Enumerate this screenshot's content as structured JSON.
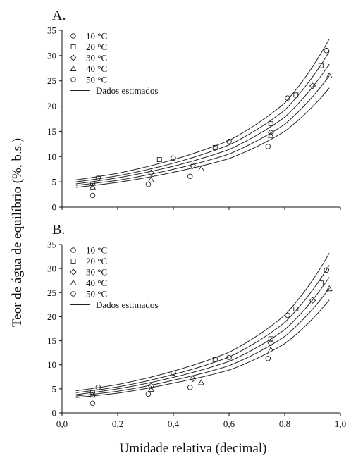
{
  "figure": {
    "ylabel": "Teor de água de equilíbrio (%, b.s.)",
    "xlabel": "Umidade relativa (decimal)"
  },
  "chart_data": [
    {
      "type": "scatter",
      "panel_label": "A.",
      "xlim": [
        0.0,
        1.0
      ],
      "ylim": [
        0,
        35
      ],
      "xticks": [
        "0,0",
        "0,2",
        "0,4",
        "0,6",
        "0,8",
        "1,0"
      ],
      "yticks": [
        "0",
        "5",
        "10",
        "15",
        "20",
        "25",
        "30",
        "35"
      ],
      "grid": false,
      "legend_position": "top-left",
      "legend": [
        {
          "label": "10 °C",
          "marker": "circle"
        },
        {
          "label": "20 °C",
          "marker": "square"
        },
        {
          "label": "30 °C",
          "marker": "diamond"
        },
        {
          "label": "40 °C",
          "marker": "triangle"
        },
        {
          "label": "50 °C",
          "marker": "circle"
        },
        {
          "label": "Dados estimados",
          "marker": "line"
        }
      ],
      "series": [
        {
          "marker": "circle",
          "points": [
            [
              0.11,
              4.6
            ],
            [
              0.13,
              5.8
            ],
            [
              0.4,
              9.7
            ],
            [
              0.6,
              13.0
            ],
            [
              0.81,
              21.6
            ],
            [
              0.95,
              31.0
            ]
          ]
        },
        {
          "marker": "square",
          "points": [
            [
              0.35,
              9.4
            ],
            [
              0.55,
              11.8
            ],
            [
              0.75,
              16.5
            ],
            [
              0.84,
              22.2
            ],
            [
              0.93,
              28.0
            ]
          ]
        },
        {
          "marker": "diamond",
          "points": [
            [
              0.32,
              6.8
            ],
            [
              0.47,
              8.2
            ],
            [
              0.75,
              14.8
            ],
            [
              0.9,
              24.0
            ]
          ]
        },
        {
          "marker": "triangle",
          "points": [
            [
              0.11,
              4.0
            ],
            [
              0.32,
              5.4
            ],
            [
              0.5,
              7.6
            ],
            [
              0.75,
              14.2
            ],
            [
              0.96,
              26.0
            ]
          ]
        },
        {
          "marker": "circle",
          "points": [
            [
              0.11,
              2.3
            ],
            [
              0.31,
              4.5
            ],
            [
              0.46,
              6.1
            ],
            [
              0.74,
              12.0
            ]
          ]
        }
      ],
      "curves": [
        {
          "x": [
            0.05,
            0.2,
            0.4,
            0.6,
            0.8,
            0.96
          ],
          "y": [
            5.4,
            6.7,
            9.4,
            13.2,
            20.6,
            33.3
          ]
        },
        {
          "x": [
            0.05,
            0.2,
            0.4,
            0.6,
            0.8,
            0.96
          ],
          "y": [
            5.0,
            6.2,
            8.7,
            12.3,
            19.2,
            30.8
          ]
        },
        {
          "x": [
            0.05,
            0.2,
            0.4,
            0.6,
            0.8,
            0.96
          ],
          "y": [
            4.6,
            5.8,
            8.1,
            11.4,
            17.8,
            28.3
          ]
        },
        {
          "x": [
            0.05,
            0.2,
            0.4,
            0.6,
            0.8,
            0.96
          ],
          "y": [
            4.3,
            5.3,
            7.5,
            10.5,
            16.4,
            26.0
          ]
        },
        {
          "x": [
            0.05,
            0.2,
            0.4,
            0.6,
            0.8,
            0.96
          ],
          "y": [
            3.9,
            4.9,
            6.9,
            9.6,
            15.0,
            23.6
          ]
        }
      ]
    },
    {
      "type": "scatter",
      "panel_label": "B.",
      "xlim": [
        0.0,
        1.0
      ],
      "ylim": [
        0,
        35
      ],
      "xticks": [
        "0,0",
        "0,2",
        "0,4",
        "0,6",
        "0,8",
        "1,0"
      ],
      "yticks": [
        "0",
        "5",
        "10",
        "15",
        "20",
        "25",
        "30",
        "35"
      ],
      "grid": false,
      "legend_position": "top-left",
      "legend": [
        {
          "label": "10 °C",
          "marker": "circle"
        },
        {
          "label": "20 °C",
          "marker": "square"
        },
        {
          "label": "30 °C",
          "marker": "diamond"
        },
        {
          "label": "40 °C",
          "marker": "triangle"
        },
        {
          "label": "50 °C",
          "marker": "circle"
        },
        {
          "label": "Dados estimados",
          "marker": "line"
        }
      ],
      "series": [
        {
          "marker": "circle",
          "points": [
            [
              0.11,
              4.3
            ],
            [
              0.13,
              5.3
            ],
            [
              0.4,
              8.3
            ],
            [
              0.6,
              11.5
            ],
            [
              0.81,
              20.3
            ],
            [
              0.95,
              29.7
            ]
          ]
        },
        {
          "marker": "square",
          "points": [
            [
              0.55,
              11.1
            ],
            [
              0.75,
              15.4
            ],
            [
              0.84,
              21.6
            ],
            [
              0.93,
              27.0
            ]
          ]
        },
        {
          "marker": "diamond",
          "points": [
            [
              0.32,
              5.6
            ],
            [
              0.47,
              7.1
            ],
            [
              0.75,
              14.5
            ],
            [
              0.9,
              23.4
            ]
          ]
        },
        {
          "marker": "triangle",
          "points": [
            [
              0.11,
              3.7
            ],
            [
              0.32,
              4.9
            ],
            [
              0.5,
              6.3
            ],
            [
              0.75,
              13.1
            ],
            [
              0.96,
              25.8
            ]
          ]
        },
        {
          "marker": "circle",
          "points": [
            [
              0.11,
              2.0
            ],
            [
              0.31,
              3.9
            ],
            [
              0.46,
              5.3
            ],
            [
              0.74,
              11.3
            ]
          ]
        }
      ],
      "curves": [
        {
          "x": [
            0.05,
            0.2,
            0.4,
            0.6,
            0.8,
            0.96
          ],
          "y": [
            4.6,
            5.9,
            8.7,
            12.6,
            20.3,
            33.2
          ]
        },
        {
          "x": [
            0.05,
            0.2,
            0.4,
            0.6,
            0.8,
            0.96
          ],
          "y": [
            4.2,
            5.4,
            8.0,
            11.6,
            18.8,
            30.7
          ]
        },
        {
          "x": [
            0.05,
            0.2,
            0.4,
            0.6,
            0.8,
            0.96
          ],
          "y": [
            3.8,
            5.0,
            7.4,
            10.7,
            17.3,
            28.2
          ]
        },
        {
          "x": [
            0.05,
            0.2,
            0.4,
            0.6,
            0.8,
            0.96
          ],
          "y": [
            3.5,
            4.5,
            6.8,
            9.8,
            15.9,
            25.9
          ]
        },
        {
          "x": [
            0.05,
            0.2,
            0.4,
            0.6,
            0.8,
            0.96
          ],
          "y": [
            3.2,
            4.1,
            6.2,
            8.9,
            14.4,
            23.5
          ]
        }
      ]
    }
  ]
}
